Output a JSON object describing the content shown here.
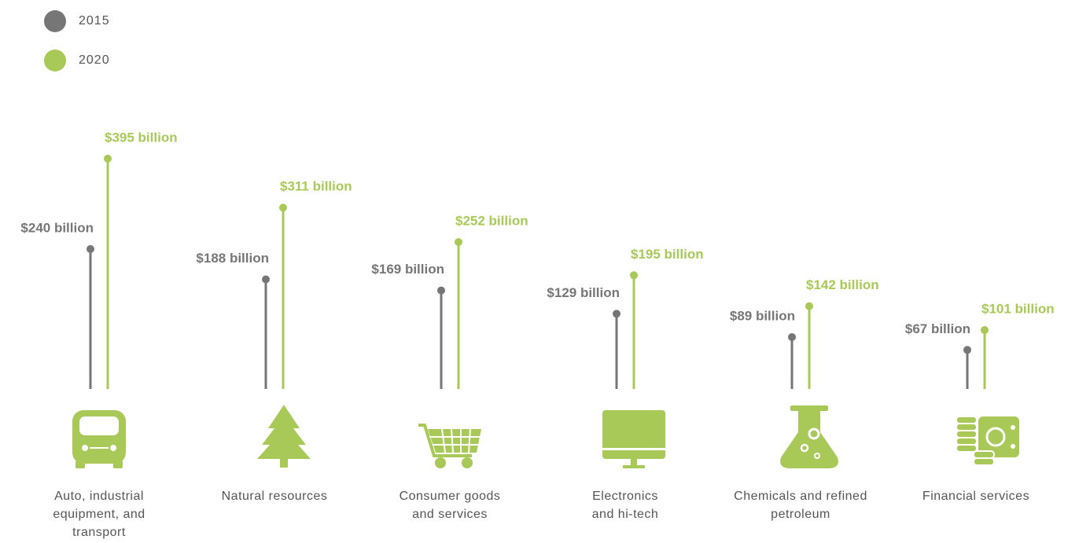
{
  "chart_data": {
    "type": "lollipop",
    "categories": [
      "Auto, industrial equipment, and transport",
      "Natural resources",
      "Consumer goods and services",
      "Electronics and hi-tech",
      "Chemicals and refined petroleum",
      "Financial services"
    ],
    "series": [
      {
        "name": "2015",
        "color": "#767676",
        "values": [
          240,
          188,
          169,
          129,
          89,
          67
        ],
        "value_labels": [
          "$240 billion",
          "$188 billion",
          "$169 billion",
          "$129 billion",
          "$89 billion",
          "$67 billion"
        ]
      },
      {
        "name": "2020",
        "color": "#a8c957",
        "values": [
          395,
          311,
          252,
          195,
          142,
          101
        ],
        "value_labels": [
          "$395 billion",
          "$311 billion",
          "$252 billion",
          "$195 billion",
          "$142 billion",
          "$101 billion"
        ]
      }
    ]
  }
}
